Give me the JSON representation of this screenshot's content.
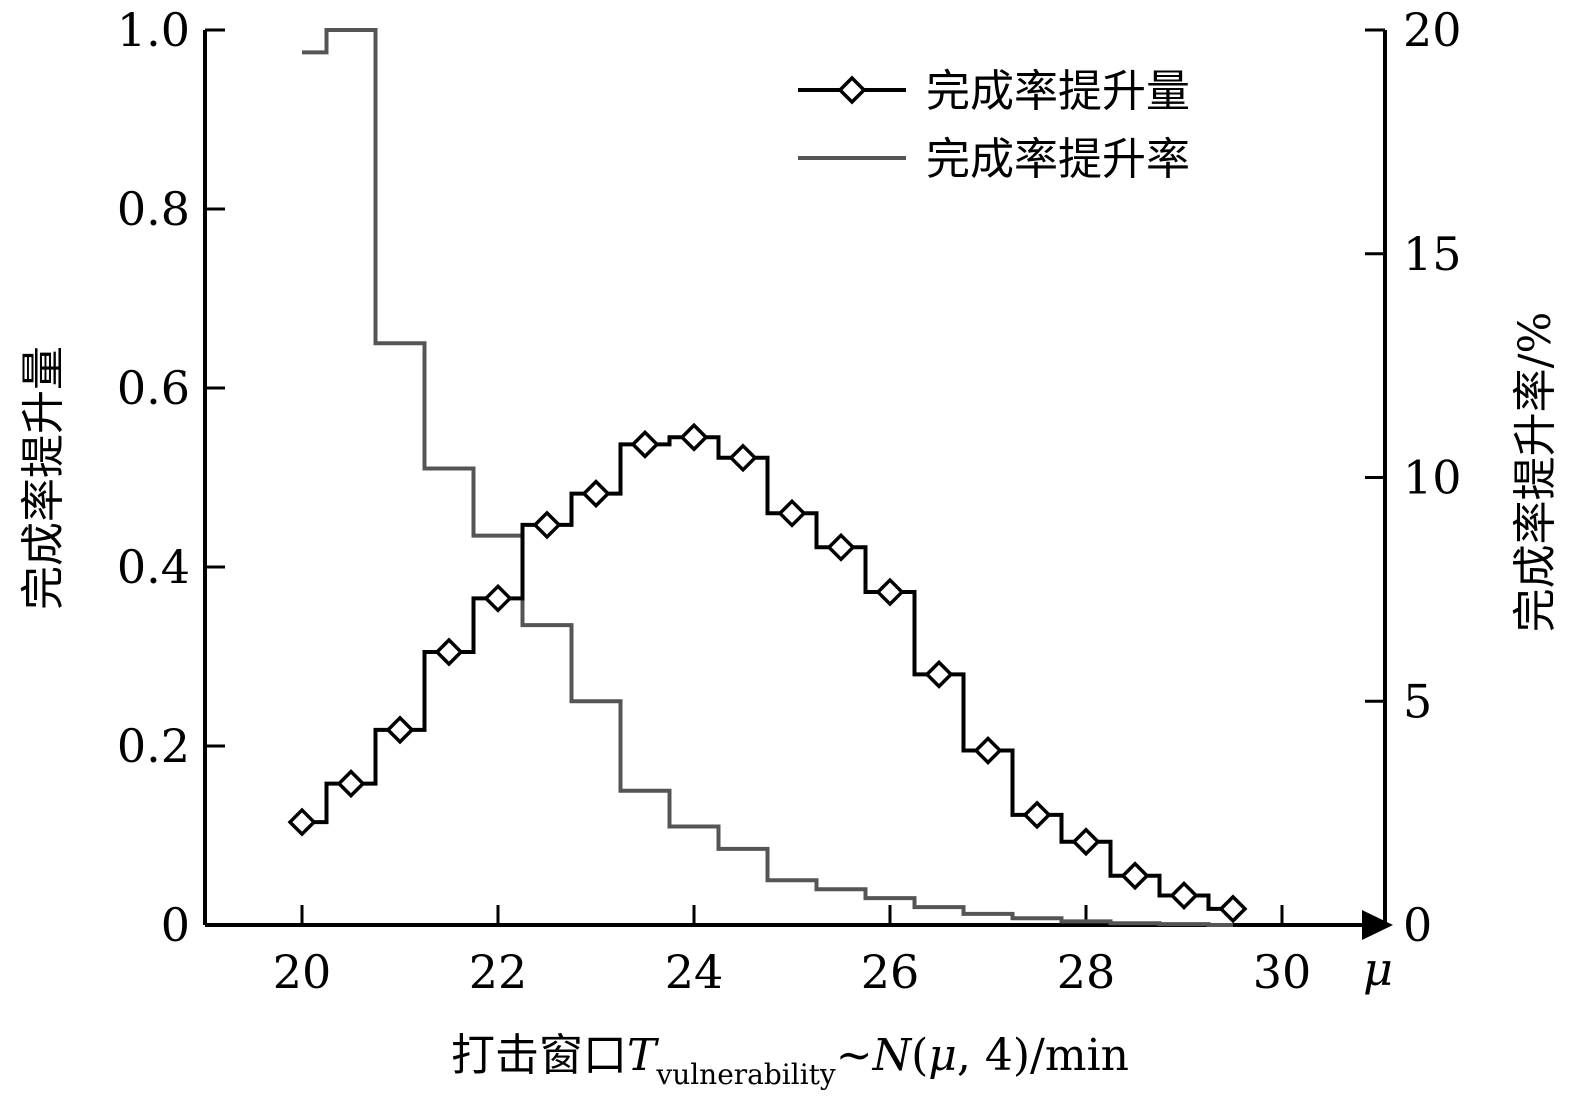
{
  "chart_data": {
    "type": "line",
    "step": true,
    "x": [
      20,
      20.5,
      21,
      21.5,
      22,
      22.5,
      23,
      23.5,
      24,
      24.5,
      25,
      25.5,
      26,
      26.5,
      27,
      27.5,
      28,
      28.5,
      29,
      29.5
    ],
    "xlim": [
      19,
      30.5
    ],
    "x_ticks": [
      20,
      22,
      24,
      26,
      28,
      30
    ],
    "x_tick_labels": [
      "20",
      "22",
      "24",
      "26",
      "28",
      "30"
    ],
    "x_axis_symbol": "μ",
    "xlabel": {
      "prefix": "打击窗口",
      "symbol": "T",
      "subscript": "vulnerability",
      "tilde": "~",
      "dist": "N",
      "paren_open": "(",
      "mu": "μ",
      "params": ", 4)/min"
    },
    "y_left": {
      "label": "完成率提升量",
      "ylim": [
        0,
        1.0
      ],
      "ticks": [
        0,
        0.2,
        0.4,
        0.6,
        0.8,
        1.0
      ],
      "tick_labels": [
        "0",
        "0.2",
        "0.4",
        "0.6",
        "0.8",
        "1.0"
      ]
    },
    "y_right": {
      "label": "完成率提升率/%",
      "ylim": [
        0,
        20
      ],
      "ticks": [
        0,
        5,
        10,
        15,
        20
      ],
      "tick_labels": [
        "0",
        "5",
        "10",
        "15",
        "20"
      ]
    },
    "series": [
      {
        "name": "完成率提升量",
        "axis": "left",
        "color": "#000000",
        "marker": "diamond",
        "values": [
          0.115,
          0.158,
          0.218,
          0.305,
          0.365,
          0.447,
          0.482,
          0.537,
          0.545,
          0.522,
          0.46,
          0.422,
          0.372,
          0.28,
          0.195,
          0.123,
          0.093,
          0.055,
          0.033,
          0.018
        ]
      },
      {
        "name": "完成率提升率",
        "axis": "right",
        "color": "#555555",
        "marker": "none",
        "values": [
          19.5,
          20.0,
          13.0,
          10.2,
          8.7,
          6.7,
          5.0,
          3.0,
          2.2,
          1.7,
          1.0,
          0.8,
          0.6,
          0.4,
          0.25,
          0.15,
          0.08,
          0.04,
          0.02,
          0.0
        ]
      }
    ],
    "legend_position": "top-right",
    "grid": false
  }
}
